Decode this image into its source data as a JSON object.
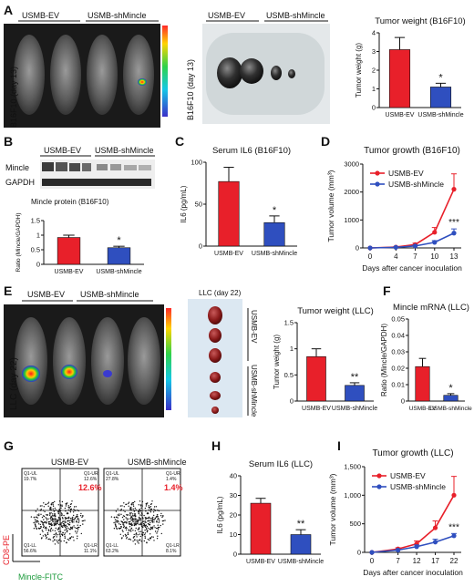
{
  "colors": {
    "ev": "#e8202a",
    "sh": "#2f4fbf",
    "axis": "#111111"
  },
  "panelA": {
    "label": "A",
    "mice_header_left": "USMB-EV",
    "mice_header_right": "USMB-shMincle",
    "mice_side_label": "B16F10 (day 13)",
    "tumor_header_left": "USMB-EV",
    "tumor_header_right": "USMB-shMincle",
    "tumor_side_label": "B16F10 (day 13)"
  },
  "panelB": {
    "label": "B",
    "blot_header_left": "USMB-EV",
    "blot_header_right": "USMB-shMincle",
    "row1": "Mincle",
    "row2": "GAPDH"
  },
  "panelC": {
    "label": "C"
  },
  "panelD": {
    "label": "D"
  },
  "panelE": {
    "label": "E",
    "mice_header_left": "USMB-EV",
    "mice_header_right": "USMB-shMincle",
    "mice_side_label": "LLC (day 22)",
    "tumor_header": "LLC (day 22)",
    "group_ev": "USMB-EV",
    "group_sh": "USMB-shMincle"
  },
  "panelF": {
    "label": "F"
  },
  "panelG": {
    "label": "G",
    "left_title": "USMB-EV",
    "right_title": "USMB-shMincle",
    "left_q1ul": "Q1-UL",
    "left_q1ul_val": "19.7%",
    "left_q1ur": "Q1-UR",
    "left_q1ur_val": "12.6%",
    "left_q1ll": "Q1-LL",
    "left_q1ll_val": "56.6%",
    "left_q1lr": "Q1-LR",
    "left_q1lr_val": "11.1%",
    "right_q1ul": "Q1-UL",
    "right_q1ul_val": "27.8%",
    "right_q1ur": "Q1-UR",
    "right_q1ur_val": "1.4%",
    "right_q1ll": "Q1-LL",
    "right_q1ll_val": "63.2%",
    "right_q1lr": "Q1-LR",
    "right_q1lr_val": "8.1%",
    "highlight_left": "12.6%",
    "highlight_right": "1.4%",
    "y_axis": "CD8-PE",
    "x_axis": "Mincle-FITC"
  },
  "panelH": {
    "label": "H"
  },
  "panelI": {
    "label": "I"
  },
  "chart_data": [
    {
      "id": "A-weight",
      "type": "bar",
      "title": "Tumor weight (B16F10)",
      "categories": [
        "USMB-EV",
        "USMB-shMincle"
      ],
      "values": [
        3.1,
        1.1
      ],
      "errors": [
        0.65,
        0.2
      ],
      "ylabel": "Tumor weight (g)",
      "ylim": [
        0,
        4
      ],
      "yticks": [
        0,
        1,
        2,
        3,
        4
      ],
      "colors": [
        "#e8202a",
        "#2f4fbf"
      ],
      "annotations": [
        {
          "category": 1,
          "text": "*"
        }
      ]
    },
    {
      "id": "B-ratio",
      "type": "bar",
      "title": "Mincle protein (B16F10)",
      "categories": [
        "USMB-EV",
        "USMB-shMincle"
      ],
      "values": [
        0.92,
        0.57
      ],
      "errors": [
        0.08,
        0.05
      ],
      "ylabel": "Ratio (Mincle/GAPDH)",
      "ylim": [
        0,
        1.5
      ],
      "yticks": [
        0.0,
        0.5,
        1.0,
        1.5
      ],
      "colors": [
        "#e8202a",
        "#2f4fbf"
      ],
      "annotations": [
        {
          "category": 1,
          "text": "*"
        }
      ]
    },
    {
      "id": "C-il6",
      "type": "bar",
      "title": "Serum IL6 (B16F10)",
      "categories": [
        "USMB-EV",
        "USMB-shMincle"
      ],
      "values": [
        77,
        28
      ],
      "errors": [
        17,
        8
      ],
      "ylabel": "IL6 (pg/mL)",
      "ylim": [
        0,
        100
      ],
      "yticks": [
        0,
        50,
        100
      ],
      "colors": [
        "#e8202a",
        "#2f4fbf"
      ],
      "annotations": [
        {
          "category": 1,
          "text": "*"
        }
      ]
    },
    {
      "id": "D-growth",
      "type": "line",
      "title": "Tumor growth (B16F10)",
      "x": [
        0,
        4,
        7,
        10,
        13
      ],
      "series": [
        {
          "name": "USMB-EV",
          "values": [
            0,
            30,
            120,
            560,
            2100
          ],
          "errors": [
            0,
            15,
            50,
            170,
            550
          ],
          "color": "#e8202a"
        },
        {
          "name": "USMB-shMincle",
          "values": [
            0,
            20,
            70,
            200,
            530
          ],
          "errors": [
            0,
            10,
            30,
            60,
            150
          ],
          "color": "#2f4fbf"
        }
      ],
      "xlabel": "Days after cancer inoculation",
      "ylabel": "Tumor volume (mm³)",
      "ylim": [
        0,
        3000
      ],
      "yticks": [
        0,
        1000,
        2000,
        3000
      ],
      "legend": "top-left",
      "annotations": [
        {
          "x": 13,
          "text": "***"
        }
      ]
    },
    {
      "id": "E-weight",
      "type": "bar",
      "title": "Tumor weight (LLC)",
      "categories": [
        "USMB-EV",
        "USMB-shMincle"
      ],
      "values": [
        0.85,
        0.3
      ],
      "errors": [
        0.15,
        0.05
      ],
      "ylabel": "Tumor weight (g)",
      "ylim": [
        0,
        1.5
      ],
      "yticks": [
        0.0,
        0.5,
        1.0,
        1.5
      ],
      "colors": [
        "#e8202a",
        "#2f4fbf"
      ],
      "annotations": [
        {
          "category": 1,
          "text": "**"
        }
      ]
    },
    {
      "id": "F-mrna",
      "type": "bar",
      "title": "Mincle mRNA (LLC)",
      "categories": [
        "USMB-EV",
        "USMB-shMincle"
      ],
      "values": [
        0.021,
        0.0035
      ],
      "errors": [
        0.005,
        0.001
      ],
      "ylabel": "Ratio (Mincle/GAPDH)",
      "ylim": [
        0,
        0.05
      ],
      "yticks": [
        0.0,
        0.01,
        0.02,
        0.03,
        0.04,
        0.05
      ],
      "colors": [
        "#e8202a",
        "#2f4fbf"
      ],
      "annotations": [
        {
          "category": 1,
          "text": "*"
        }
      ]
    },
    {
      "id": "H-il6",
      "type": "bar",
      "title": "Serum IL6 (LLC)",
      "categories": [
        "USMB-EV",
        "USMB-shMincle"
      ],
      "values": [
        26,
        10
      ],
      "errors": [
        2.5,
        2.5
      ],
      "ylabel": "IL6 (pg/mL)",
      "ylim": [
        0,
        40
      ],
      "yticks": [
        0,
        10,
        20,
        30,
        40
      ],
      "colors": [
        "#e8202a",
        "#2f4fbf"
      ],
      "annotations": [
        {
          "category": 1,
          "text": "**"
        }
      ]
    },
    {
      "id": "I-growth",
      "type": "line",
      "title": "Tumor growth (LLC)",
      "x": [
        0,
        7,
        12,
        17,
        22
      ],
      "series": [
        {
          "name": "USMB-EV",
          "values": [
            0,
            60,
            150,
            430,
            1000
          ],
          "errors": [
            0,
            20,
            50,
            120,
            330
          ],
          "color": "#e8202a"
        },
        {
          "name": "USMB-shMincle",
          "values": [
            0,
            40,
            100,
            180,
            290
          ],
          "errors": [
            0,
            15,
            30,
            50,
            40
          ],
          "color": "#2f4fbf"
        }
      ],
      "xlabel": "Days after cancer inoculation",
      "ylabel": "Tumor volume (mm³)",
      "ylim": [
        0,
        1500
      ],
      "yticks": [
        0,
        500,
        1000,
        1500
      ],
      "ytick_labels": [
        "0",
        "500",
        "1,000",
        "1,500"
      ],
      "legend": "top-left",
      "annotations": [
        {
          "x": 22,
          "text": "***"
        }
      ]
    }
  ]
}
